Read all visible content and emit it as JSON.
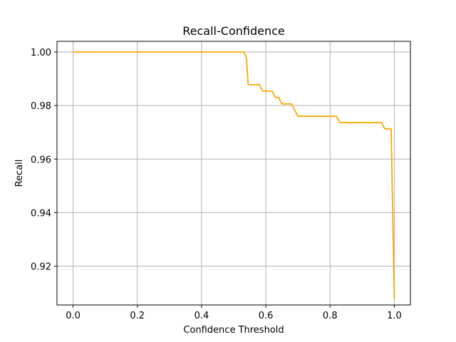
{
  "chart_data": {
    "type": "line",
    "title": "Recall-Confidence",
    "xlabel": "Confidence Threshold",
    "ylabel": "Recall",
    "xlim": [
      -0.05,
      1.05
    ],
    "ylim": [
      0.9055,
      1.004
    ],
    "xticks": [
      0.0,
      0.2,
      0.4,
      0.6,
      0.8,
      1.0
    ],
    "xtick_labels": [
      "0.0",
      "0.2",
      "0.4",
      "0.6",
      "0.8",
      "1.0"
    ],
    "yticks": [
      0.92,
      0.94,
      0.96,
      0.98,
      1.0
    ],
    "ytick_labels": [
      "0.92",
      "0.94",
      "0.96",
      "0.98",
      "1.00"
    ],
    "grid": true,
    "line_color": "#FFA500",
    "series": [
      {
        "x": [
          0.0,
          0.53,
          0.535,
          0.54,
          0.545,
          0.58,
          0.59,
          0.62,
          0.63,
          0.64,
          0.65,
          0.68,
          0.69,
          0.7,
          0.81,
          0.82,
          0.83,
          0.96,
          0.97,
          0.99,
          1.0
        ],
        "y": [
          1.0,
          1.0,
          0.9993,
          0.9973,
          0.9878,
          0.9878,
          0.9854,
          0.9854,
          0.983,
          0.983,
          0.9806,
          0.9806,
          0.9783,
          0.976,
          0.976,
          0.976,
          0.9736,
          0.9736,
          0.9713,
          0.9713,
          0.9078
        ]
      }
    ]
  }
}
